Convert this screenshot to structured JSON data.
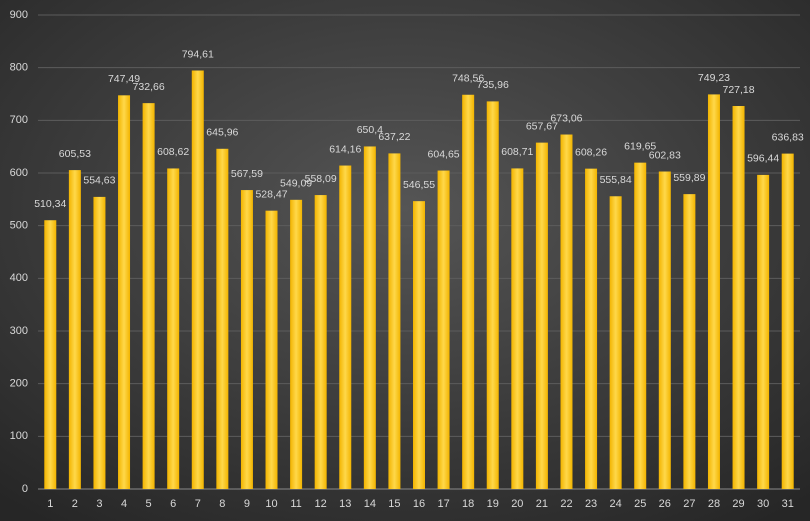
{
  "chart_data": {
    "type": "bar",
    "categories": [
      "1",
      "2",
      "3",
      "4",
      "5",
      "6",
      "7",
      "8",
      "9",
      "10",
      "11",
      "12",
      "13",
      "14",
      "15",
      "16",
      "17",
      "18",
      "19",
      "20",
      "21",
      "22",
      "23",
      "24",
      "25",
      "26",
      "27",
      "28",
      "29",
      "30",
      "31"
    ],
    "values": [
      510.34,
      605.53,
      554.63,
      747.49,
      732.66,
      608.62,
      794.61,
      645.96,
      567.59,
      528.47,
      549.09,
      558.09,
      614.16,
      650.4,
      637.22,
      546.55,
      604.65,
      748.56,
      735.96,
      608.71,
      657.67,
      673.06,
      608.26,
      555.84,
      619.65,
      602.83,
      559.89,
      749.23,
      727.18,
      596.44,
      636.83
    ],
    "value_labels": [
      "510,34",
      "605,53",
      "554,63",
      "747,49",
      "732,66",
      "608,62",
      "794,61",
      "645,96",
      "567,59",
      "528,47",
      "549,09",
      "558,09",
      "614,16",
      "650,4",
      "637,22",
      "546,55",
      "604,65",
      "748,56",
      "735,96",
      "608,71",
      "657,67",
      "673,06",
      "608,26",
      "555,84",
      "619,65",
      "602,83",
      "559,89",
      "749,23",
      "727,18",
      "596,44",
      "636,83"
    ],
    "color": "#ffc61a",
    "ylim": [
      0,
      900
    ],
    "yticks": [
      0,
      100,
      200,
      300,
      400,
      500,
      600,
      700,
      800,
      900
    ],
    "grid": true
  }
}
